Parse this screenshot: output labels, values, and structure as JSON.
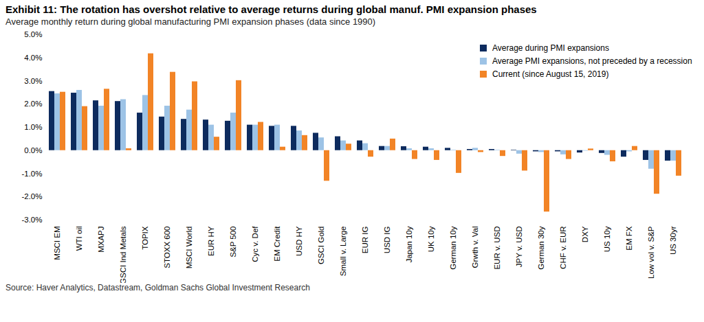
{
  "chart_data": {
    "type": "bar",
    "title": "Exhibit 11: The rotation has overshot relative to average returns during global manuf. PMI expansion phases",
    "subtitle": "Average monthly return during global manufacturing PMI expansion phases (data since 1990)",
    "source": "Source: Haver Analytics, Datastream, Goldman Sachs Global Investment Research",
    "categories": [
      "MSCI EM",
      "WTI oil",
      "MXAPJ",
      "GSCI Ind Metals",
      "TOPIX",
      "STOXX 600",
      "MSCI World",
      "EUR HY",
      "S&P 500",
      "Cyc v. Def",
      "EM Credit",
      "USD HY",
      "GSCI Gold",
      "Small v. Large",
      "EUR IG",
      "USD IG",
      "Japan 10y",
      "UK 10y",
      "German 10y",
      "Grwth v. Val",
      "EUR v. USD",
      "JPY v. USD",
      "German 30y",
      "CHF v. EUR",
      "DXY",
      "US 10y",
      "EM FX",
      "Low vol v. S&P",
      "US 30yr"
    ],
    "series": [
      {
        "name": "Average during PMI expansions",
        "color": "#0d2b5e",
        "values": [
          2.55,
          2.48,
          2.15,
          2.12,
          1.62,
          1.45,
          1.35,
          1.32,
          1.27,
          1.1,
          1.05,
          1.05,
          0.75,
          0.6,
          0.42,
          0.18,
          0.17,
          0.15,
          0.1,
          0.05,
          0.05,
          0.02,
          -0.05,
          -0.05,
          -0.1,
          -0.12,
          -0.28,
          -0.42,
          -0.45
        ]
      },
      {
        "name": "Average PMI expansions, not preceded by a recession",
        "color": "#9dc3e6",
        "values": [
          2.45,
          2.6,
          1.92,
          2.2,
          2.38,
          1.92,
          1.75,
          1.1,
          1.62,
          1.1,
          1.1,
          0.85,
          0.55,
          0.42,
          0.3,
          0.18,
          0.08,
          0.08,
          0.02,
          0.1,
          0.02,
          -0.15,
          -0.08,
          -0.18,
          -0.02,
          -0.2,
          -0.05,
          -0.8,
          -0.45
        ]
      },
      {
        "name": "Current (since August 15, 2019)",
        "color": "#f28426",
        "values": [
          2.52,
          1.9,
          2.65,
          0.08,
          4.18,
          3.38,
          2.97,
          0.58,
          3.02,
          1.22,
          0.15,
          0.65,
          -1.32,
          0.28,
          -0.28,
          0.5,
          -0.38,
          -0.42,
          -0.98,
          -0.08,
          -0.25,
          -0.88,
          -2.65,
          -0.38,
          0.07,
          -0.48,
          0.18,
          -1.88,
          -1.1
        ]
      }
    ],
    "ylim": [
      -3,
      5
    ],
    "yticks": [
      {
        "value": -3,
        "label": "-3.0%"
      },
      {
        "value": -2,
        "label": "-2.0%"
      },
      {
        "value": -1,
        "label": "-1.0%"
      },
      {
        "value": 0,
        "label": "0.0%"
      },
      {
        "value": 1,
        "label": "1.0%"
      },
      {
        "value": 2,
        "label": "2.0%"
      },
      {
        "value": 3,
        "label": "3.0%"
      },
      {
        "value": 4,
        "label": "4.0%"
      },
      {
        "value": 5,
        "label": "5.0%"
      }
    ],
    "grid": false,
    "legend": "top-right"
  }
}
